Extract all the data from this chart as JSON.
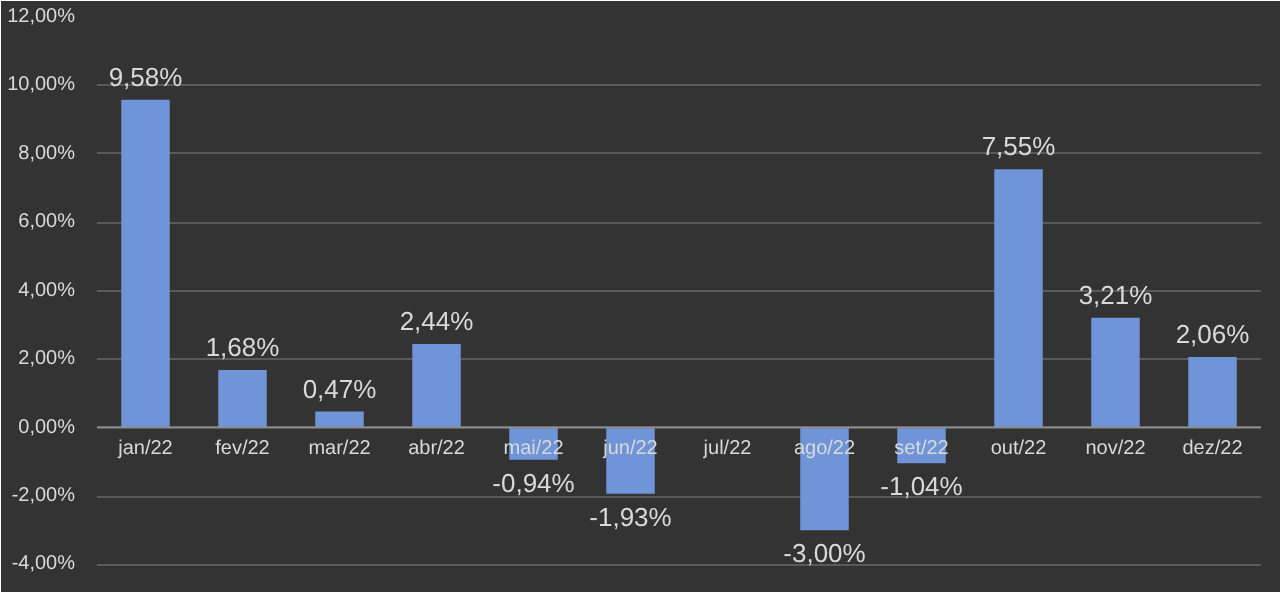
{
  "chart_data": {
    "type": "bar",
    "categories": [
      "jan/22",
      "fev/22",
      "mar/22",
      "abr/22",
      "mai/22",
      "jun/22",
      "jul/22",
      "ago/22",
      "set/22",
      "out/22",
      "nov/22",
      "dez/22"
    ],
    "values": [
      9.58,
      1.68,
      0.47,
      2.44,
      -0.94,
      -1.93,
      null,
      -3.0,
      -1.04,
      7.55,
      3.21,
      2.06
    ],
    "value_labels": [
      "9,58%",
      "1,68%",
      "0,47%",
      "2,44%",
      "-0,94%",
      "-1,93%",
      null,
      "-3,00%",
      "-1,04%",
      "7,55%",
      "3,21%",
      "2,06%"
    ],
    "color": "#6f95d8",
    "ylim": [
      -4.6,
      12
    ],
    "yticks": [
      {
        "value": -4,
        "label": "-4,00%"
      },
      {
        "value": -2,
        "label": "-2,00%"
      },
      {
        "value": 0,
        "label": "0,00%"
      },
      {
        "value": 2,
        "label": "2,00%"
      },
      {
        "value": 4,
        "label": "4,00%"
      },
      {
        "value": 6,
        "label": "6,00%"
      },
      {
        "value": 8,
        "label": "8,00%"
      },
      {
        "value": 10,
        "label": "10,00%"
      },
      {
        "value": 12,
        "label": "12,00%"
      }
    ],
    "grid": "y"
  }
}
